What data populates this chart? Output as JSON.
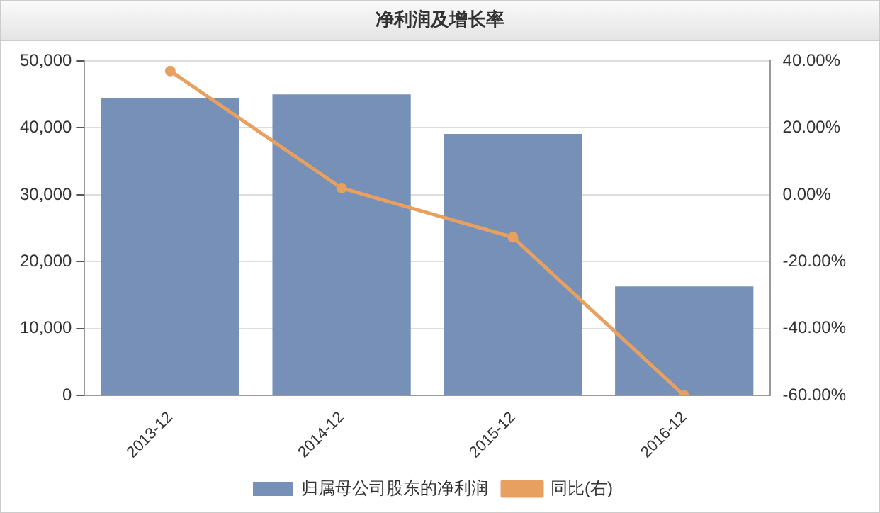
{
  "chart_data": {
    "type": "bar",
    "title": "净利润及增长率",
    "categories": [
      "2013-12",
      "2014-12",
      "2015-12",
      "2016-12"
    ],
    "series": [
      {
        "name": "归属母公司股东的净利润",
        "color": "#7690b8",
        "values": [
          44500,
          45000,
          39100,
          16300
        ]
      },
      {
        "name": "同比(右)",
        "type": "line",
        "axis": "y2",
        "color": "#e8a060",
        "values": [
          37,
          2,
          -12.7,
          -60
        ]
      }
    ],
    "ylim": [
      0,
      50000
    ],
    "yticks": [
      {
        "value": 0,
        "label": "0"
      },
      {
        "value": 10000,
        "label": "10,000"
      },
      {
        "value": 20000,
        "label": "20,000"
      },
      {
        "value": 30000,
        "label": "30,000"
      },
      {
        "value": 40000,
        "label": "40,000"
      },
      {
        "value": 50000,
        "label": "50,000"
      }
    ],
    "y2lim": [
      -60,
      40
    ],
    "y2ticks": [
      {
        "value": -60,
        "label": "-60.00%"
      },
      {
        "value": -40,
        "label": "-40.00%"
      },
      {
        "value": -20,
        "label": "-20.00%"
      },
      {
        "value": 0,
        "label": "0.00%"
      },
      {
        "value": 20,
        "label": "20.00%"
      },
      {
        "value": 40,
        "label": "40.00%"
      }
    ],
    "grid": "y",
    "legend": "bottom",
    "marker": "circle",
    "line_style": "solid"
  }
}
